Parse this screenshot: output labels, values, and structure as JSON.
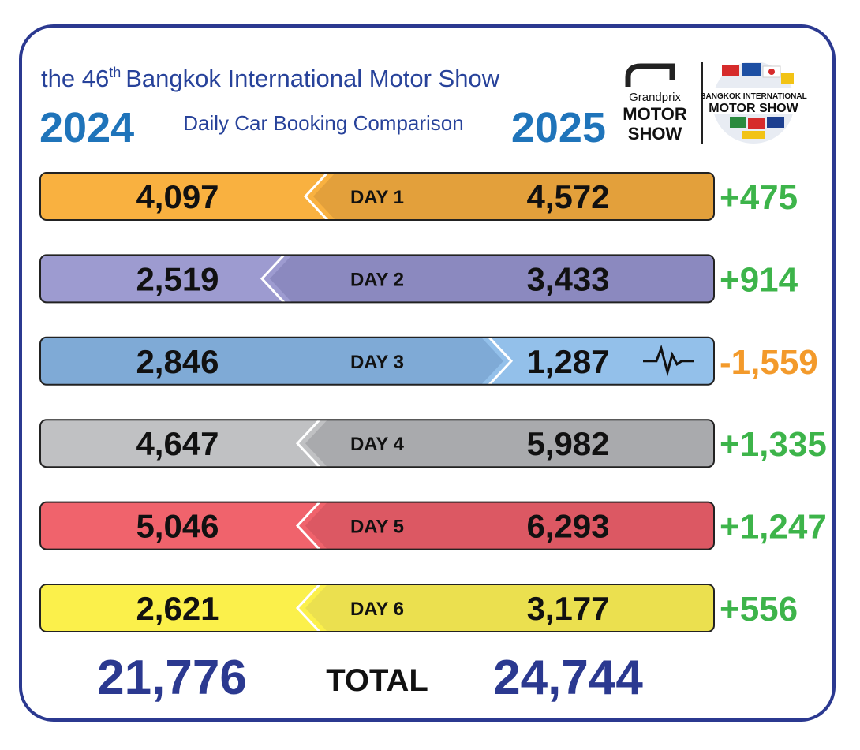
{
  "header": {
    "title_start": "the 46",
    "title_ordinal": "th",
    "title_end": "Bangkok International Motor Show",
    "year_left": "2024",
    "subtitle": "Daily Car Booking Comparison",
    "year_right": "2025"
  },
  "logos": {
    "grandprix": [
      "Grandprix",
      "MOTOR",
      "SHOW"
    ],
    "bims": [
      "BANGKOK INTERNATIONAL",
      "MOTOR SHOW"
    ]
  },
  "rows": [
    {
      "day": "DAY 1",
      "year_2024": "4,097",
      "year_2025": "4,572",
      "change": "+475",
      "left_color": "#f9b140",
      "right_color": "#e3a03b",
      "change_color": "#3db44a"
    },
    {
      "day": "DAY 2",
      "year_2024": "2,519",
      "year_2025": "3,433",
      "change": "+914",
      "left_color": "#9d9bd0",
      "right_color": "#8b89bf",
      "change_color": "#3db44a"
    },
    {
      "day": "DAY 3",
      "year_2024": "2,846",
      "year_2025": "1,287",
      "change": "-1,559",
      "left_color": "#7faad6",
      "right_color": "#93c0ea",
      "change_color": "#f39a2b"
    },
    {
      "day": "DAY 4",
      "year_2024": "4,647",
      "year_2025": "5,982",
      "change": "+1,335",
      "left_color": "#c0c1c3",
      "right_color": "#a9aaad",
      "change_color": "#3db44a"
    },
    {
      "day": "DAY 5",
      "year_2024": "5,046",
      "year_2025": "6,293",
      "change": "+1,247",
      "left_color": "#f0636c",
      "right_color": "#dc5863",
      "change_color": "#3db44a"
    },
    {
      "day": "DAY 6",
      "year_2024": "2,621",
      "year_2025": "3,177",
      "change": "+556",
      "left_color": "#fbf04b",
      "right_color": "#ebe04f",
      "change_color": "#3db44a"
    }
  ],
  "total": {
    "year_2024": "21,776",
    "label": "TOTAL",
    "year_2025": "24,744"
  }
}
